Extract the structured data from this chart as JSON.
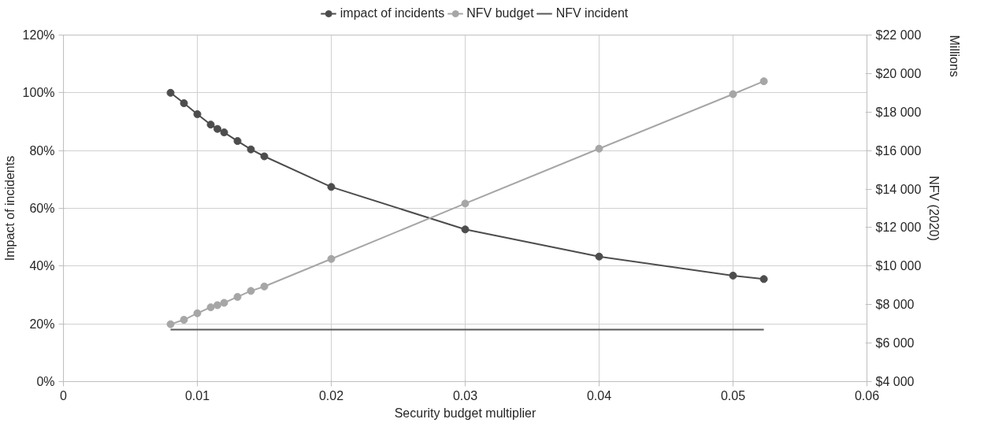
{
  "chart_data": {
    "type": "line",
    "xlabel": "Security budget multiplier",
    "ylabel": "Impact of incidents",
    "y2label": "NFV (2020)",
    "annotations": [
      "Millions"
    ],
    "xlim": [
      0,
      0.06
    ],
    "xticks": [
      0,
      0.01,
      0.02,
      0.03,
      0.04,
      0.05,
      0.06
    ],
    "ylim": [
      0,
      1.2
    ],
    "yticks": [
      {
        "value": 0,
        "label": "0%"
      },
      {
        "value": 0.2,
        "label": "20%"
      },
      {
        "value": 0.4,
        "label": "40%"
      },
      {
        "value": 0.6,
        "label": "60%"
      },
      {
        "value": 0.8,
        "label": "80%"
      },
      {
        "value": 1.0,
        "label": "100%"
      },
      {
        "value": 1.2,
        "label": "120%"
      }
    ],
    "y2lim": [
      4000,
      22000
    ],
    "y2ticks": [
      {
        "value": 4000,
        "label": "$4 000"
      },
      {
        "value": 6000,
        "label": "$6 000"
      },
      {
        "value": 8000,
        "label": "$8 000"
      },
      {
        "value": 10000,
        "label": "$10 000"
      },
      {
        "value": 12000,
        "label": "$12 000"
      },
      {
        "value": 14000,
        "label": "$14 000"
      },
      {
        "value": 16000,
        "label": "$16 000"
      },
      {
        "value": 18000,
        "label": "$18 000"
      },
      {
        "value": 20000,
        "label": "$20 000"
      },
      {
        "value": 22000,
        "label": "$22 000"
      }
    ],
    "grid": true,
    "legend": "top",
    "series": [
      {
        "name": "impact of incidents",
        "color": "#4d4d4d",
        "marker": "circle",
        "x": [
          0.008,
          0.009,
          0.01,
          0.011,
          0.0115,
          0.012,
          0.013,
          0.014,
          0.015,
          0.02,
          0.03,
          0.04,
          0.05,
          0.0523
        ],
        "values": [
          1.0,
          0.964,
          0.926,
          0.89,
          0.875,
          0.863,
          0.833,
          0.804,
          0.78,
          0.674,
          0.527,
          0.433,
          0.367,
          0.355
        ]
      },
      {
        "name": "NFV budget",
        "color": "#a6a6a6",
        "marker": "circle",
        "axis": "y2",
        "x": [
          0.008,
          0.009,
          0.01,
          0.011,
          0.0115,
          0.012,
          0.013,
          0.014,
          0.015,
          0.02,
          0.03,
          0.04,
          0.05,
          0.0523
        ],
        "values": [
          6980,
          7210,
          7550,
          7860,
          7970,
          8090,
          8400,
          8710,
          8940,
          10370,
          13250,
          16100,
          18930,
          19600
        ]
      },
      {
        "name": "NFV incident",
        "color": "#595959",
        "marker": "none",
        "axis": "y2",
        "x": [
          0.008,
          0.0523
        ],
        "values": [
          6700,
          6700
        ]
      }
    ]
  }
}
